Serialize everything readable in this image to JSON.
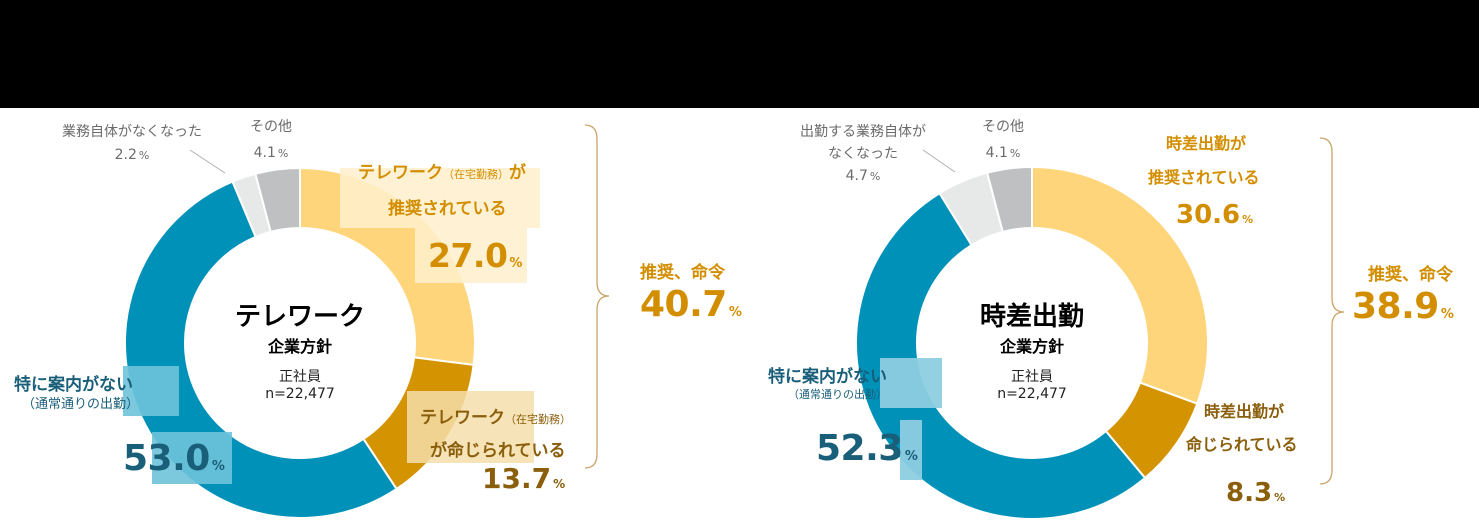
{
  "colors": {
    "recommended": "#ffd57b",
    "ordered": "#d49300",
    "no_guidance": "#0091b9",
    "work_gone": "#e7e9e9",
    "other": "#bfc0c2",
    "gold_text": "#d38e00",
    "brown_text": "#8a5e0a",
    "teal_text": "#1a5f79",
    "bracket": "#c9a468"
  },
  "chart_data": [
    {
      "type": "pie",
      "subtype": "donut",
      "title": "テレワーク 企業方針",
      "center": {
        "title": "テレワーク",
        "subtitle": "企業方針",
        "population": "正社員",
        "n": "n=22,477"
      },
      "categories": [
        "テレワーク（在宅勤務）が推奨されている",
        "テレワーク（在宅勤務）が命じられている",
        "特に案内がない（通常通りの出勤）",
        "業務自体がなくなった",
        "その他"
      ],
      "values": [
        27.0,
        13.7,
        53.0,
        2.2,
        4.1
      ],
      "unit": "%",
      "bracket_total": {
        "label": "推奨、命令",
        "value": 40.7
      }
    },
    {
      "type": "pie",
      "subtype": "donut",
      "title": "時差出勤 企業方針",
      "center": {
        "title": "時差出勤",
        "subtitle": "企業方針",
        "population": "正社員",
        "n": "n=22,477"
      },
      "categories": [
        "時差出勤が推奨されている",
        "時差出勤が命じられている",
        "特に案内がない（通常通りの出勤）",
        "出勤する業務自体がなくなった",
        "その他"
      ],
      "values": [
        30.6,
        8.3,
        52.3,
        4.7,
        4.1
      ],
      "unit": "%",
      "bracket_total": {
        "label": "推奨、命令",
        "value": 38.9
      }
    }
  ],
  "left": {
    "center_title": "テレワーク",
    "center_subtitle": "企業方針",
    "population": "正社員",
    "n": "n=22,477",
    "recommended": {
      "line1_main": "テレワーク",
      "line1_paren": "（在宅勤務）",
      "line1_tail": "が",
      "line2": "推奨されている",
      "value": "27.0",
      "pct": "%"
    },
    "ordered": {
      "line1_main": "テレワーク",
      "line1_paren": "（在宅勤務）",
      "line2": "が命じられている",
      "value": "13.7",
      "pct": "%"
    },
    "no_guidance": {
      "line1": "特に案内がない",
      "line2": "（通常通りの出勤）",
      "value": "53.0",
      "pct": "%"
    },
    "work_gone": {
      "label": "業務自体がなくなった",
      "value": "2.2",
      "pct": "%"
    },
    "other": {
      "label": "その他",
      "value": "4.1",
      "pct": "%"
    },
    "total": {
      "label": "推奨、命令",
      "value": "40.7",
      "pct": "%"
    }
  },
  "right": {
    "center_title": "時差出勤",
    "center_subtitle": "企業方針",
    "population": "正社員",
    "n": "n=22,477",
    "recommended": {
      "line1": "時差出勤が",
      "line2": "推奨されている",
      "value": "30.6",
      "pct": "%"
    },
    "ordered": {
      "line1": "時差出勤が",
      "line2": "命じられている",
      "value": "8.3",
      "pct": "%"
    },
    "no_guidance": {
      "line1": "特に案内がない",
      "line2": "（通常通りの出勤）",
      "value": "52.3",
      "pct": "%"
    },
    "work_gone": {
      "label1": "出勤する業務自体が",
      "label2": "なくなった",
      "value": "4.7",
      "pct": "%"
    },
    "other": {
      "label": "その他",
      "value": "4.1",
      "pct": "%"
    },
    "total": {
      "label": "推奨、命令",
      "value": "38.9",
      "pct": "%"
    }
  }
}
